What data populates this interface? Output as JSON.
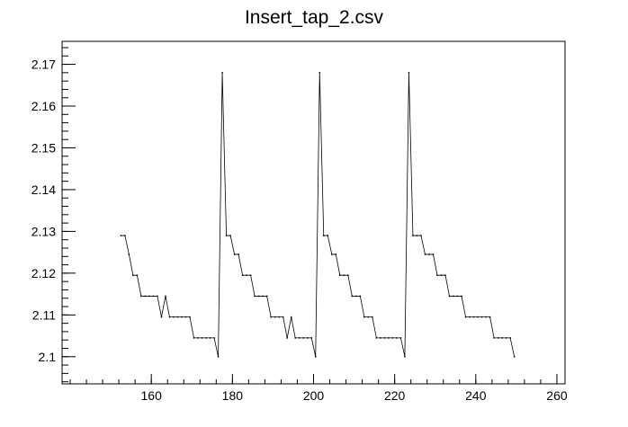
{
  "chart_data": {
    "type": "line",
    "title": "Insert_tap_2.csv",
    "xlabel": "",
    "ylabel": "",
    "xlim": [
      138,
      262
    ],
    "ylim": [
      2.0935,
      2.1755
    ],
    "x_major_ticks": [
      160,
      180,
      200,
      220,
      240,
      260
    ],
    "x_tick_labels": [
      "160",
      "180",
      "200",
      "220",
      "240",
      "260"
    ],
    "x_minor_step": 4,
    "y_major_ticks": [
      2.1,
      2.11,
      2.12,
      2.13,
      2.14,
      2.15,
      2.16,
      2.17
    ],
    "y_tick_labels": [
      "2.1",
      "2.11",
      "2.12",
      "2.13",
      "2.14",
      "2.15",
      "2.16",
      "2.17"
    ],
    "y_minor_step": 0.002,
    "grid": false,
    "legend": "none",
    "series": [
      {
        "color": "#000000",
        "marker": "dot",
        "points": [
          [
            152.5,
            2.129
          ],
          [
            153.5,
            2.129
          ],
          [
            154.5,
            2.1245
          ],
          [
            155.5,
            2.1195
          ],
          [
            156.5,
            2.1195
          ],
          [
            157.5,
            2.1145
          ],
          [
            158.5,
            2.1145
          ],
          [
            159.5,
            2.1145
          ],
          [
            160.5,
            2.1145
          ],
          [
            161.5,
            2.1145
          ],
          [
            162.5,
            2.1095
          ],
          [
            163.5,
            2.1145
          ],
          [
            164.5,
            2.1095
          ],
          [
            165.5,
            2.1095
          ],
          [
            166.5,
            2.1095
          ],
          [
            167.5,
            2.1095
          ],
          [
            168.5,
            2.1095
          ],
          [
            169.5,
            2.1095
          ],
          [
            170.5,
            2.1045
          ],
          [
            171.5,
            2.1045
          ],
          [
            172.5,
            2.1045
          ],
          [
            173.5,
            2.1045
          ],
          [
            174.5,
            2.1045
          ],
          [
            175.5,
            2.1045
          ],
          [
            176.5,
            2.1
          ],
          [
            177.5,
            2.168
          ],
          [
            178.5,
            2.129
          ],
          [
            179.5,
            2.129
          ],
          [
            180.5,
            2.1245
          ],
          [
            181.5,
            2.1245
          ],
          [
            182.5,
            2.1195
          ],
          [
            183.5,
            2.1195
          ],
          [
            184.5,
            2.1195
          ],
          [
            185.5,
            2.1145
          ],
          [
            186.5,
            2.1145
          ],
          [
            187.5,
            2.1145
          ],
          [
            188.5,
            2.1145
          ],
          [
            189.5,
            2.1095
          ],
          [
            190.5,
            2.1095
          ],
          [
            191.5,
            2.1095
          ],
          [
            192.5,
            2.1095
          ],
          [
            193.5,
            2.1045
          ],
          [
            194.5,
            2.1095
          ],
          [
            195.5,
            2.1045
          ],
          [
            196.5,
            2.1045
          ],
          [
            197.5,
            2.1045
          ],
          [
            198.5,
            2.1045
          ],
          [
            199.5,
            2.1045
          ],
          [
            200.5,
            2.1
          ],
          [
            201.5,
            2.168
          ],
          [
            202.5,
            2.129
          ],
          [
            203.5,
            2.129
          ],
          [
            204.5,
            2.1245
          ],
          [
            205.5,
            2.1245
          ],
          [
            206.5,
            2.1195
          ],
          [
            207.5,
            2.1195
          ],
          [
            208.5,
            2.1195
          ],
          [
            209.5,
            2.1145
          ],
          [
            210.5,
            2.1145
          ],
          [
            211.5,
            2.1145
          ],
          [
            212.5,
            2.1095
          ],
          [
            213.5,
            2.1095
          ],
          [
            214.5,
            2.1095
          ],
          [
            215.5,
            2.1045
          ],
          [
            216.5,
            2.1045
          ],
          [
            217.5,
            2.1045
          ],
          [
            218.5,
            2.1045
          ],
          [
            219.5,
            2.1045
          ],
          [
            220.5,
            2.1045
          ],
          [
            221.5,
            2.1045
          ],
          [
            222.5,
            2.1
          ],
          [
            223.5,
            2.168
          ],
          [
            224.5,
            2.129
          ],
          [
            225.5,
            2.129
          ],
          [
            226.5,
            2.129
          ],
          [
            227.5,
            2.1245
          ],
          [
            228.5,
            2.1245
          ],
          [
            229.5,
            2.1245
          ],
          [
            230.5,
            2.1195
          ],
          [
            231.5,
            2.1195
          ],
          [
            232.5,
            2.1195
          ],
          [
            233.5,
            2.1145
          ],
          [
            234.5,
            2.1145
          ],
          [
            235.5,
            2.1145
          ],
          [
            236.5,
            2.1145
          ],
          [
            237.5,
            2.1095
          ],
          [
            238.5,
            2.1095
          ],
          [
            239.5,
            2.1095
          ],
          [
            240.5,
            2.1095
          ],
          [
            241.5,
            2.1095
          ],
          [
            242.5,
            2.1095
          ],
          [
            243.5,
            2.1095
          ],
          [
            244.5,
            2.1045
          ],
          [
            245.5,
            2.1045
          ],
          [
            246.5,
            2.1045
          ],
          [
            247.5,
            2.1045
          ],
          [
            248.5,
            2.1045
          ],
          [
            249.5,
            2.1
          ]
        ]
      }
    ]
  }
}
